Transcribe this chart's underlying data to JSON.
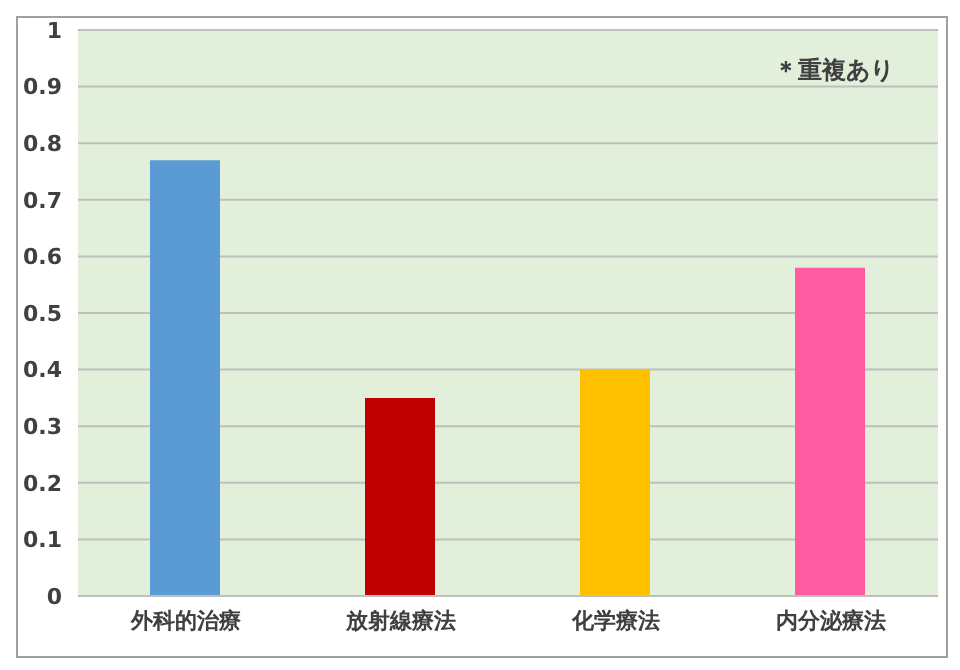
{
  "chart_data": {
    "type": "bar",
    "categories": [
      "外科的治療",
      "放射線療法",
      "化学療法",
      "内分泌療法"
    ],
    "values": [
      0.77,
      0.35,
      0.4,
      0.58
    ],
    "colors": [
      "#5b9bd5",
      "#c00000",
      "#ffc000",
      "#ff5ba3"
    ],
    "ylim": [
      0,
      1
    ],
    "yticks": [
      0,
      0.1,
      0.2,
      0.3,
      0.4,
      0.5,
      0.6,
      0.7,
      0.8,
      0.9,
      1
    ],
    "grid": "y",
    "annotations": [
      "＊重複あり"
    ]
  }
}
